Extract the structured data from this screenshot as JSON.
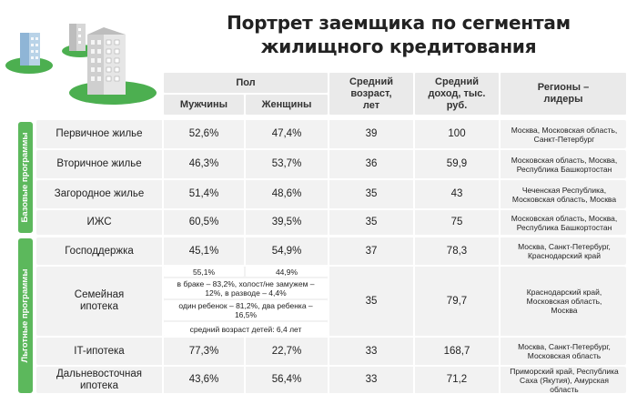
{
  "title_line1": "Портрет заемщика по сегментам",
  "title_line2": "жилищного кредитования",
  "headers": {
    "gender": "Пол",
    "men": "Мужчины",
    "women": "Женщины",
    "age": "Средний возраст, лет",
    "income": "Средний доход, тыс. руб.",
    "regions": "Регионы – лидеры"
  },
  "groups": {
    "base": "Базовые программы",
    "preferential": "Льготные программы"
  },
  "rows": [
    {
      "name": "Первичное жилье",
      "men": "52,6%",
      "women": "47,4%",
      "age": "39",
      "income": "100",
      "regions": "Москва, Московская область, Санкт-Петербург"
    },
    {
      "name": "Вторичное жилье",
      "men": "46,3%",
      "women": "53,7%",
      "age": "36",
      "income": "59,9",
      "regions": "Московская область, Москва, Республика Башкортостан"
    },
    {
      "name": "Загородное жилье",
      "men": "51,4%",
      "women": "48,6%",
      "age": "35",
      "income": "43",
      "regions": "Чеченская Республика, Московская область, Москва"
    },
    {
      "name": "ИЖС",
      "men": "60,5%",
      "women": "39,5%",
      "age": "35",
      "income": "75",
      "regions": "Московская область, Москва, Республика Башкортостан"
    },
    {
      "name": "Господдержка",
      "men": "45,1%",
      "women": "54,9%",
      "age": "37",
      "income": "78,3",
      "regions": "Москва, Санкт-Петербург, Краснодарский край"
    },
    {
      "name": "Семейная ипотека",
      "men": "55,1%",
      "women": "44,9%",
      "age": "35",
      "income": "79,7",
      "regions": "Краснодарский край, Московская область, Москва",
      "marital": "в браке – 83,2%, холост/не замужем – 12%, в разводе – 4,4%",
      "children": "один ребенок – 81,2%, два ребенка – 16,5%",
      "child_age": "средний возраст детей: 6,4 лет"
    },
    {
      "name": "IT-ипотека",
      "men": "77,3%",
      "women": "22,7%",
      "age": "33",
      "income": "168,7",
      "regions": "Москва, Санкт-Петербург, Московская область"
    },
    {
      "name": "Дальневосточная ипотека",
      "men": "43,6%",
      "women": "56,4%",
      "age": "33",
      "income": "71,2",
      "regions": "Приморский край, Республика Саха (Якутия), Амурская область"
    }
  ],
  "colors": {
    "accent_green": "#5cb85c",
    "header_bg": "#eaeaea",
    "row_bg": "#f2f2f2"
  }
}
